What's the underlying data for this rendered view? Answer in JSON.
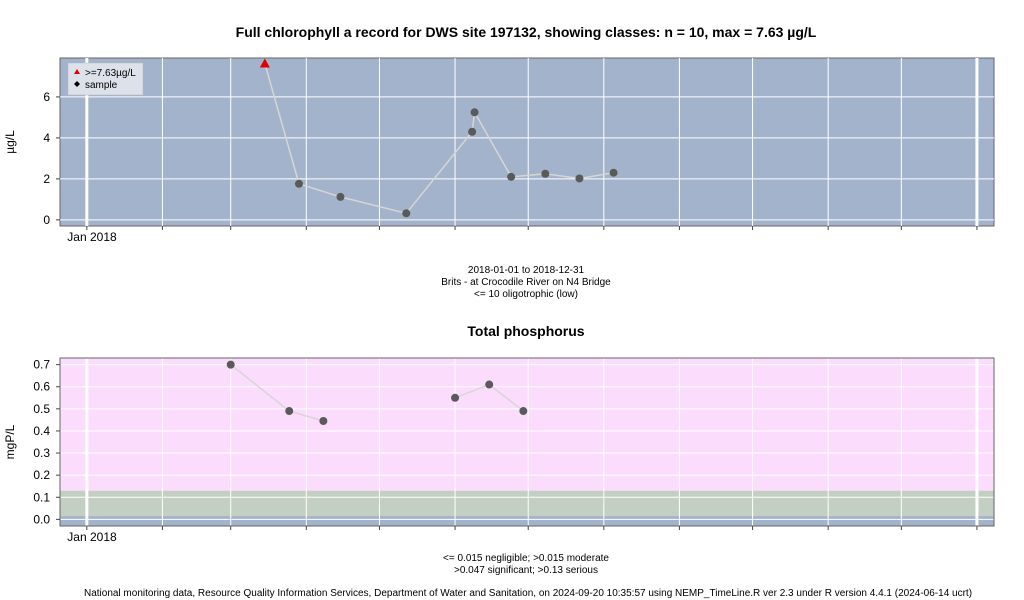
{
  "chart_data": [
    {
      "type": "scatter",
      "title": "Full chlorophyll a record for DWS site 197132, showing classes: n = 10, max = 7.63 µg/L",
      "ylabel": "µg/L",
      "xlabel_lines": [
        "2018-01-01 to 2018-12-31",
        "Brits - at Crocodile River on N4 Bridge",
        "<= 10 oligotrophic (low)"
      ],
      "x_tick_label": "Jan 2018",
      "y_ticks": [
        0,
        2,
        4,
        6
      ],
      "ylim": [
        -0.3,
        7.9
      ],
      "xlim": [
        "2017-12-21",
        "2019-01-08"
      ],
      "background_color": "#a3b3cb",
      "grid": true,
      "legend": {
        "position": "top-left",
        "entries": [
          {
            "label": ">=7.63µg/L",
            "marker": "triangle",
            "color": "#e00000"
          },
          {
            "label": "sample",
            "marker": "diamond",
            "color": "#000000"
          }
        ]
      },
      "series": [
        {
          "points": [
            {
              "x": "2018-03-15",
              "y": 7.63,
              "class": "max"
            },
            {
              "x": "2018-03-29",
              "y": 1.76
            },
            {
              "x": "2018-04-15",
              "y": 1.12
            },
            {
              "x": "2018-05-12",
              "y": 0.32
            },
            {
              "x": "2018-06-08",
              "y": 4.3
            },
            {
              "x": "2018-06-09",
              "y": 5.25
            },
            {
              "x": "2018-06-24",
              "y": 2.1
            },
            {
              "x": "2018-07-08",
              "y": 2.25
            },
            {
              "x": "2018-07-22",
              "y": 2.02
            },
            {
              "x": "2018-08-05",
              "y": 2.3
            }
          ]
        }
      ]
    },
    {
      "type": "scatter",
      "title": "Total phosphorus",
      "ylabel": "mgP/L",
      "xlabel_lines": [
        "<= 0.015 negligible; >0.015 moderate",
        ">0.047 significant; >0.13 serious"
      ],
      "x_tick_label": "Jan 2018",
      "y_ticks": [
        0.0,
        0.1,
        0.2,
        0.3,
        0.4,
        0.5,
        0.6,
        0.7
      ],
      "ylim": [
        -0.03,
        0.73
      ],
      "xlim": [
        "2017-12-21",
        "2019-01-08"
      ],
      "grid": true,
      "class_bands": [
        {
          "from": -0.03,
          "to": 0.015,
          "label": "negligible",
          "color": "#a3b3cb"
        },
        {
          "from": 0.015,
          "to": 0.13,
          "label": "significant",
          "color": "#c4cfc4"
        },
        {
          "from": 0.13,
          "to": 0.73,
          "label": "serious",
          "color": "#fcdcfc"
        }
      ],
      "series": [
        {
          "points": [
            {
              "x": "2018-03-01",
              "y": 0.7
            },
            {
              "x": "2018-03-25",
              "y": 0.49
            },
            {
              "x": "2018-04-08",
              "y": 0.445
            },
            {
              "x": "2018-06-01",
              "y": 0.55
            },
            {
              "x": "2018-06-15",
              "y": 0.61
            },
            {
              "x": "2018-06-29",
              "y": 0.49
            }
          ]
        }
      ]
    }
  ],
  "footer": "National monitoring data, Resource Quality Information Services, Department of Water and Sanitation, on 2024-09-20 10:35:57 using NEMP_TimeLine.R ver 2.3 under R version 4.4.1 (2024-06-14 ucrt)"
}
